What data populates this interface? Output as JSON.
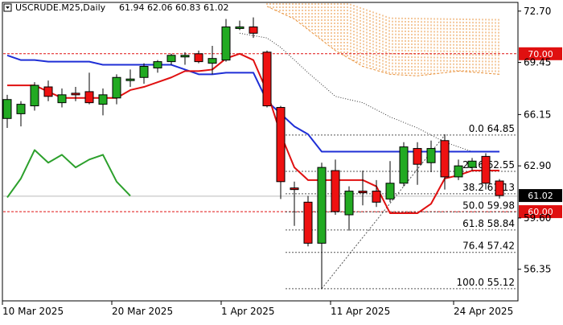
{
  "header": {
    "symbol": "USCRUDE.M25,Daily",
    "ohlc": "61.94 62.06 60.83 61.02"
  },
  "chart_data": {
    "type": "candlestick",
    "ylim": [
      54.4,
      73.2
    ],
    "y_ticks": [
      {
        "label": "72.70",
        "value": 72.7
      },
      {
        "label": "69.45",
        "value": 69.45
      },
      {
        "label": "66.15",
        "value": 66.15
      },
      {
        "label": "62.90",
        "value": 62.9
      },
      {
        "label": "59.60",
        "value": 59.6
      },
      {
        "label": "56.35",
        "value": 56.35
      }
    ],
    "x_labels": [
      {
        "label": "10 Mar 2025",
        "index": 0
      },
      {
        "label": "20 Mar 2025",
        "index": 8
      },
      {
        "label": "1 Apr 2025",
        "index": 16
      },
      {
        "label": "11 Apr 2025",
        "index": 24
      },
      {
        "label": "24 Apr 2025",
        "index": 33
      }
    ],
    "candles": [
      {
        "o": 65.9,
        "h": 67.4,
        "l": 65.3,
        "c": 67.1
      },
      {
        "o": 66.2,
        "h": 67.0,
        "l": 65.4,
        "c": 66.8
      },
      {
        "o": 66.7,
        "h": 68.2,
        "l": 66.4,
        "c": 68.0
      },
      {
        "o": 67.9,
        "h": 68.3,
        "l": 67.0,
        "c": 67.3
      },
      {
        "o": 66.9,
        "h": 67.8,
        "l": 66.6,
        "c": 67.4
      },
      {
        "o": 67.5,
        "h": 67.9,
        "l": 67.0,
        "c": 67.4
      },
      {
        "o": 67.6,
        "h": 68.8,
        "l": 66.8,
        "c": 66.9
      },
      {
        "o": 66.8,
        "h": 67.8,
        "l": 66.1,
        "c": 67.4
      },
      {
        "o": 67.2,
        "h": 68.7,
        "l": 66.8,
        "c": 68.5
      },
      {
        "o": 68.3,
        "h": 69.0,
        "l": 67.9,
        "c": 68.4
      },
      {
        "o": 68.5,
        "h": 69.4,
        "l": 68.1,
        "c": 69.2
      },
      {
        "o": 69.1,
        "h": 69.6,
        "l": 68.8,
        "c": 69.5
      },
      {
        "o": 69.5,
        "h": 70.0,
        "l": 69.3,
        "c": 69.9
      },
      {
        "o": 69.8,
        "h": 70.1,
        "l": 69.3,
        "c": 69.9
      },
      {
        "o": 70.0,
        "h": 70.2,
        "l": 69.4,
        "c": 69.5
      },
      {
        "o": 69.4,
        "h": 70.5,
        "l": 68.7,
        "c": 69.7
      },
      {
        "o": 69.6,
        "h": 72.2,
        "l": 69.5,
        "c": 71.7
      },
      {
        "o": 71.7,
        "h": 72.1,
        "l": 71.5,
        "c": 71.7
      },
      {
        "o": 71.7,
        "h": 72.3,
        "l": 71.0,
        "c": 71.3
      },
      {
        "o": 70.1,
        "h": 70.2,
        "l": 66.6,
        "c": 66.7
      },
      {
        "o": 66.6,
        "h": 66.7,
        "l": 60.8,
        "c": 61.9
      },
      {
        "o": 61.5,
        "h": 61.9,
        "l": 59.1,
        "c": 61.4
      },
      {
        "o": 60.6,
        "h": 61.0,
        "l": 57.8,
        "c": 58.0
      },
      {
        "o": 58.0,
        "h": 63.1,
        "l": 55.1,
        "c": 62.8
      },
      {
        "o": 62.6,
        "h": 63.3,
        "l": 59.8,
        "c": 60.0
      },
      {
        "o": 59.8,
        "h": 61.6,
        "l": 58.8,
        "c": 61.3
      },
      {
        "o": 61.3,
        "h": 62.6,
        "l": 60.4,
        "c": 61.2
      },
      {
        "o": 61.3,
        "h": 62.0,
        "l": 60.3,
        "c": 60.6
      },
      {
        "o": 60.8,
        "h": 63.2,
        "l": 60.6,
        "c": 61.8
      },
      {
        "o": 61.8,
        "h": 64.4,
        "l": 61.6,
        "c": 64.1
      },
      {
        "o": 64.0,
        "h": 64.4,
        "l": 61.7,
        "c": 63.0
      },
      {
        "o": 63.1,
        "h": 64.5,
        "l": 62.5,
        "c": 64.0
      },
      {
        "o": 64.5,
        "h": 64.9,
        "l": 61.4,
        "c": 62.2
      },
      {
        "o": 62.2,
        "h": 63.3,
        "l": 62.0,
        "c": 62.9
      },
      {
        "o": 62.8,
        "h": 63.4,
        "l": 62.6,
        "c": 63.2
      },
      {
        "o": 63.5,
        "h": 63.7,
        "l": 61.4,
        "c": 61.8
      },
      {
        "o": 61.94,
        "h": 62.06,
        "l": 60.83,
        "c": 61.02
      }
    ],
    "series": [
      {
        "color": "#1f2fd6",
        "points": [
          [
            0,
            69.9
          ],
          [
            1,
            69.6
          ],
          [
            2,
            69.6
          ],
          [
            3,
            69.5
          ],
          [
            4,
            69.5
          ],
          [
            5,
            69.5
          ],
          [
            6,
            69.5
          ],
          [
            7,
            69.3
          ],
          [
            8,
            69.3
          ],
          [
            9,
            69.3
          ],
          [
            10,
            69.3
          ],
          [
            11,
            69.3
          ],
          [
            12,
            69.3
          ],
          [
            13,
            69.0
          ],
          [
            14,
            68.7
          ],
          [
            15,
            68.7
          ],
          [
            16,
            68.8
          ],
          [
            17,
            68.8
          ],
          [
            18,
            68.8
          ],
          [
            19,
            67.0
          ],
          [
            20,
            66.2
          ],
          [
            21,
            65.4
          ],
          [
            22,
            64.9
          ],
          [
            23,
            63.8
          ],
          [
            24,
            63.8
          ],
          [
            25,
            63.8
          ],
          [
            26,
            63.8
          ],
          [
            27,
            63.8
          ],
          [
            28,
            63.8
          ],
          [
            29,
            63.8
          ],
          [
            30,
            63.8
          ],
          [
            31,
            63.8
          ],
          [
            32,
            63.8
          ],
          [
            33,
            63.8
          ],
          [
            34,
            63.8
          ],
          [
            35,
            63.8
          ],
          [
            36,
            63.8
          ]
        ]
      },
      {
        "color": "#e01010",
        "points": [
          [
            0,
            68.0
          ],
          [
            1,
            68.0
          ],
          [
            2,
            68.0
          ],
          [
            3,
            67.6
          ],
          [
            4,
            67.2
          ],
          [
            5,
            67.2
          ],
          [
            6,
            67.2
          ],
          [
            7,
            67.2
          ],
          [
            8,
            67.2
          ],
          [
            9,
            67.7
          ],
          [
            10,
            67.9
          ],
          [
            11,
            68.2
          ],
          [
            12,
            68.5
          ],
          [
            13,
            68.9
          ],
          [
            14,
            68.9
          ],
          [
            15,
            69.0
          ],
          [
            16,
            69.7
          ],
          [
            17,
            70.0
          ],
          [
            18,
            69.6
          ],
          [
            19,
            67.6
          ],
          [
            20,
            64.9
          ],
          [
            21,
            62.8
          ],
          [
            22,
            62.0
          ],
          [
            23,
            62.0
          ],
          [
            24,
            62.0
          ],
          [
            25,
            62.0
          ],
          [
            26,
            62.0
          ],
          [
            27,
            61.6
          ],
          [
            28,
            59.9
          ],
          [
            29,
            59.9
          ],
          [
            30,
            59.9
          ],
          [
            31,
            60.5
          ],
          [
            32,
            62.1
          ],
          [
            33,
            62.3
          ],
          [
            34,
            62.6
          ],
          [
            35,
            62.6
          ],
          [
            36,
            62.6
          ]
        ]
      },
      {
        "color": "#2ca02c",
        "points": [
          [
            0,
            60.9
          ],
          [
            1,
            62.1
          ],
          [
            2,
            63.9
          ],
          [
            3,
            63.1
          ],
          [
            4,
            63.6
          ],
          [
            5,
            62.8
          ],
          [
            6,
            63.3
          ],
          [
            7,
            63.6
          ],
          [
            8,
            61.9
          ],
          [
            9,
            61.0
          ]
        ]
      }
    ],
    "cloud": {
      "color": "#e8913a",
      "top": [
        [
          21,
          73.2
        ],
        [
          25,
          73.2
        ],
        [
          27,
          72.6
        ],
        [
          28,
          72.3
        ],
        [
          36,
          72.2
        ]
      ],
      "bottom": [
        [
          19,
          73.0
        ],
        [
          21,
          72.2
        ],
        [
          24,
          70.2
        ],
        [
          26,
          69.2
        ],
        [
          28,
          68.7
        ],
        [
          30,
          68.6
        ],
        [
          33,
          68.9
        ],
        [
          36,
          68.7
        ]
      ]
    },
    "dotted_line": {
      "color": "#333333",
      "points": [
        [
          17,
          71.3
        ],
        [
          19,
          71.0
        ],
        [
          20,
          70.4
        ],
        [
          22,
          68.8
        ],
        [
          24,
          67.3
        ],
        [
          26,
          66.9
        ],
        [
          28,
          66.0
        ],
        [
          30,
          65.3
        ],
        [
          32,
          64.4
        ],
        [
          34,
          63.8
        ]
      ]
    },
    "fib_levels": [
      {
        "label": "0.0 64.85",
        "value": 64.85
      },
      {
        "label": "23.6 62.55",
        "value": 62.55
      },
      {
        "label": "38.2 61.13",
        "value": 61.13
      },
      {
        "label": "50.0 59.98",
        "value": 59.98
      },
      {
        "label": "61.8 58.84",
        "value": 58.84
      },
      {
        "label": "76.4 57.42",
        "value": 57.42
      },
      {
        "label": "100.0 55.12",
        "value": 55.12
      }
    ],
    "fib_diagonal": [
      [
        23,
        55.12
      ],
      [
        32,
        64.85
      ]
    ],
    "horizontal_lines": [
      {
        "label": "70.00",
        "value": 70.0,
        "color": "#e01010",
        "badge": true
      },
      {
        "label": "60.00",
        "value": 60.0,
        "color": "#e01010",
        "badge": true
      }
    ],
    "gray_line": {
      "value": 60.98,
      "color": "#bbbbbb"
    },
    "price_badge": {
      "label": "61.02",
      "value": 61.02,
      "color": "#000000"
    }
  }
}
